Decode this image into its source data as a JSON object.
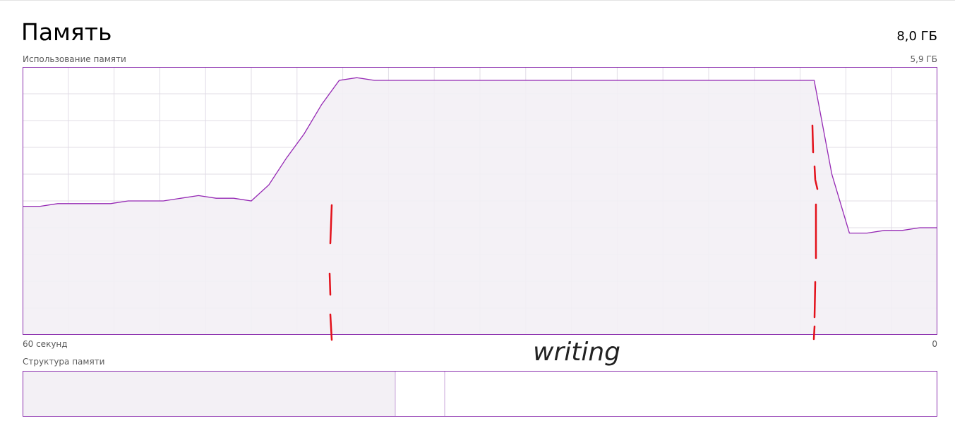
{
  "header": {
    "title": "Память",
    "total_memory": "8,0 ГБ"
  },
  "usage_chart": {
    "label": "Использование памяти",
    "max_value": "5,9 ГБ",
    "time_left": "60 секунд",
    "time_right": "0"
  },
  "chart_data": {
    "type": "area",
    "xlabel": "",
    "ylabel": "",
    "x_range": [
      60,
      0
    ],
    "y_range_fraction": [
      0,
      1
    ],
    "grid": true,
    "series": [
      {
        "values": [
          0.48,
          0.48,
          0.49,
          0.49,
          0.49,
          0.49,
          0.5,
          0.5,
          0.5,
          0.51,
          0.52,
          0.51,
          0.51,
          0.5,
          0.56,
          0.66,
          0.75,
          0.86,
          0.95,
          0.96,
          0.95,
          0.95,
          0.95,
          0.95,
          0.95,
          0.95,
          0.95,
          0.95,
          0.95,
          0.95,
          0.95,
          0.95,
          0.95,
          0.95,
          0.95,
          0.95,
          0.95,
          0.95,
          0.95,
          0.95,
          0.95,
          0.95,
          0.95,
          0.95,
          0.95,
          0.95,
          0.6,
          0.38,
          0.38,
          0.39,
          0.39,
          0.4,
          0.4
        ]
      }
    ],
    "colors": {
      "line": "#9528b4",
      "fill": "#f3f0f5",
      "grid": "#e0dce6",
      "border": "#8b2fae"
    }
  },
  "annotation": {
    "text": "writing",
    "marker_color": "#e3111b"
  },
  "structure": {
    "label": "Структура памяти"
  }
}
